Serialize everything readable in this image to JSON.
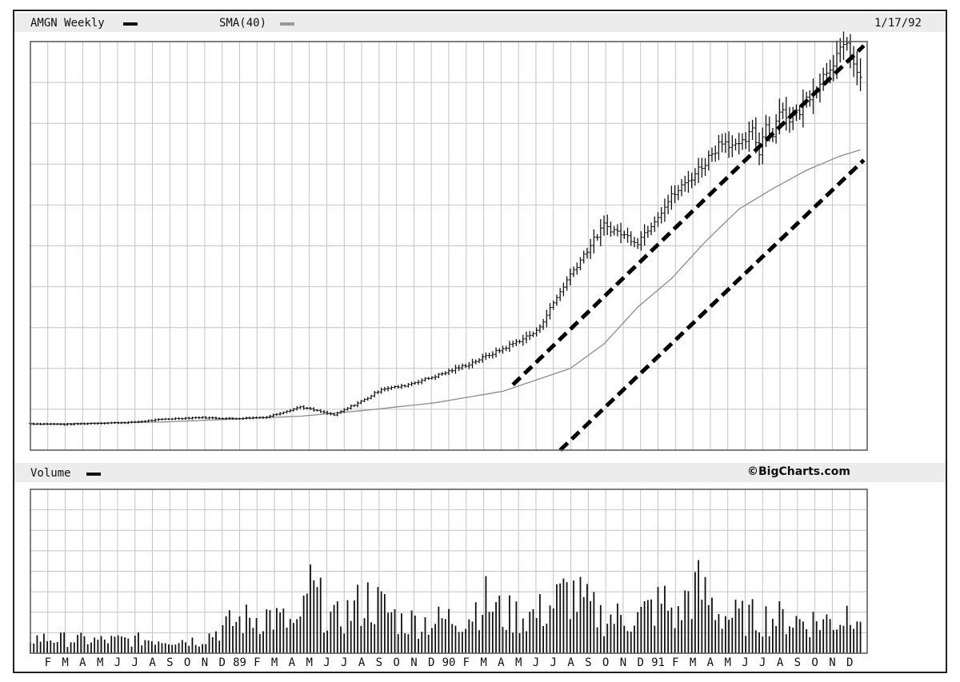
{
  "header": {
    "symbol_label": "AMGN Weekly",
    "sma_label": "SMA(40)",
    "date": "1/17/92"
  },
  "volume_panel": {
    "label": "Volume",
    "credit": "©BigCharts.com"
  },
  "colors": {
    "price": "#111111",
    "sma": "#8c8c8c",
    "grid": "#c4c4c4",
    "channel": "#000000",
    "band_bg": "#ececec"
  },
  "chart_data": [
    {
      "type": "line",
      "title": "AMGN Weekly",
      "series": [
        {
          "name": "AMGN Weekly",
          "style": "ohlc-bars",
          "x": [
            0,
            10,
            20,
            30,
            40,
            50,
            60,
            70,
            80,
            90,
            100,
            104,
            110,
            120,
            130,
            140,
            150,
            160,
            170,
            180,
            190,
            195,
            200,
            205,
            210,
            212,
            214,
            216,
            218,
            220,
            222,
            225,
            228,
            230,
            233,
            236,
            239,
            242,
            246
          ],
          "y": [
            6.5,
            6.3,
            6.6,
            6.8,
            7.6,
            8.0,
            7.7,
            8.1,
            10.6,
            8.6,
            12.8,
            15.0,
            15.6,
            18.1,
            21.1,
            24.8,
            29.0,
            43.0,
            55.0,
            51.0,
            62.0,
            66.0,
            70.5,
            76.0,
            74.0,
            76.0,
            78.0,
            73.0,
            80.0,
            77.0,
            84.0,
            81.0,
            83.0,
            86.0,
            89.0,
            93.0,
            96.5,
            99.0,
            90.0
          ]
        },
        {
          "name": "SMA(40)",
          "style": "line",
          "x": [
            0,
            40,
            80,
            100,
            120,
            140,
            160,
            170,
            180,
            190,
            200,
            210,
            220,
            230,
            240,
            246
          ],
          "y": [
            6.3,
            6.9,
            8.3,
            9.8,
            11.6,
            14.4,
            20.0,
            26.0,
            35.0,
            42.0,
            51.0,
            59.0,
            64.0,
            68.5,
            72.0,
            73.5
          ]
        }
      ],
      "annotations": [
        {
          "type": "dashed-trendline",
          "name": "upper channel",
          "from": [
            143,
            16.0
          ],
          "to": [
            247,
            99.0
          ]
        },
        {
          "type": "dashed-trendline",
          "name": "lower channel",
          "from": [
            157,
            0
          ],
          "to": [
            247,
            71.0
          ]
        }
      ],
      "x_range": [
        0,
        248
      ],
      "y_range": [
        0,
        100
      ],
      "grid": true
    },
    {
      "type": "bar",
      "title": "Volume",
      "series": [
        {
          "name": "Volume",
          "x": [
            0,
            20,
            40,
            50,
            60,
            70,
            80,
            82,
            90,
            100,
            105,
            110,
            120,
            130,
            134,
            140,
            150,
            160,
            165,
            170,
            180,
            184,
            188,
            192,
            195,
            198,
            205,
            210,
            220,
            230,
            240,
            244,
            246
          ],
          "values": [
            12,
            10,
            11,
            10,
            24,
            30,
            20,
            53,
            25,
            42,
            35,
            25,
            25,
            30,
            43,
            30,
            30,
            48,
            36,
            28,
            28,
            35,
            40,
            27,
            47,
            50,
            30,
            28,
            28,
            25,
            26,
            40,
            33
          ]
        }
      ],
      "x_range": [
        0,
        248
      ],
      "y_range": [
        0,
        100
      ],
      "grid": true
    }
  ],
  "x_ticks": [
    "F",
    "M",
    "A",
    "M",
    "J",
    "J",
    "A",
    "S",
    "O",
    "N",
    "D",
    "89",
    "F",
    "M",
    "A",
    "M",
    "J",
    "J",
    "A",
    "S",
    "O",
    "N",
    "D",
    "90",
    "F",
    "M",
    "A",
    "M",
    "J",
    "J",
    "A",
    "S",
    "O",
    "N",
    "D",
    "91",
    "F",
    "M",
    "A",
    "M",
    "J",
    "J",
    "A",
    "S",
    "O",
    "N",
    "D"
  ]
}
